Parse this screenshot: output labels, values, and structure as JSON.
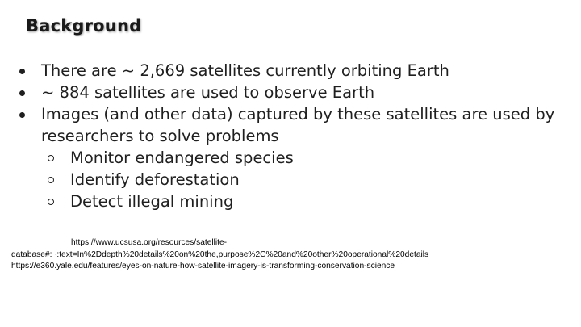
{
  "slide": {
    "title": "Background",
    "bullets": [
      "There are ~ 2,669 satellites currently orbiting Earth",
      "~ 884 satellites are used to observe Earth",
      "Images (and other data) captured by these satellites are used by researchers to solve problems"
    ],
    "sub_bullets": [
      "Monitor endangered species",
      "Identify deforestation",
      "Detect illegal mining"
    ],
    "references": {
      "ref1_line1": "https://www.ucsusa.org/resources/satellite-",
      "ref1_line2": "database#:~:text=In%2Ddepth%20details%20on%20the,purpose%2C%20and%20other%20operational%20details",
      "ref2": "https://e360.yale.edu/features/eyes-on-nature-how-satellite-imagery-is-transforming-conservation-science"
    }
  }
}
